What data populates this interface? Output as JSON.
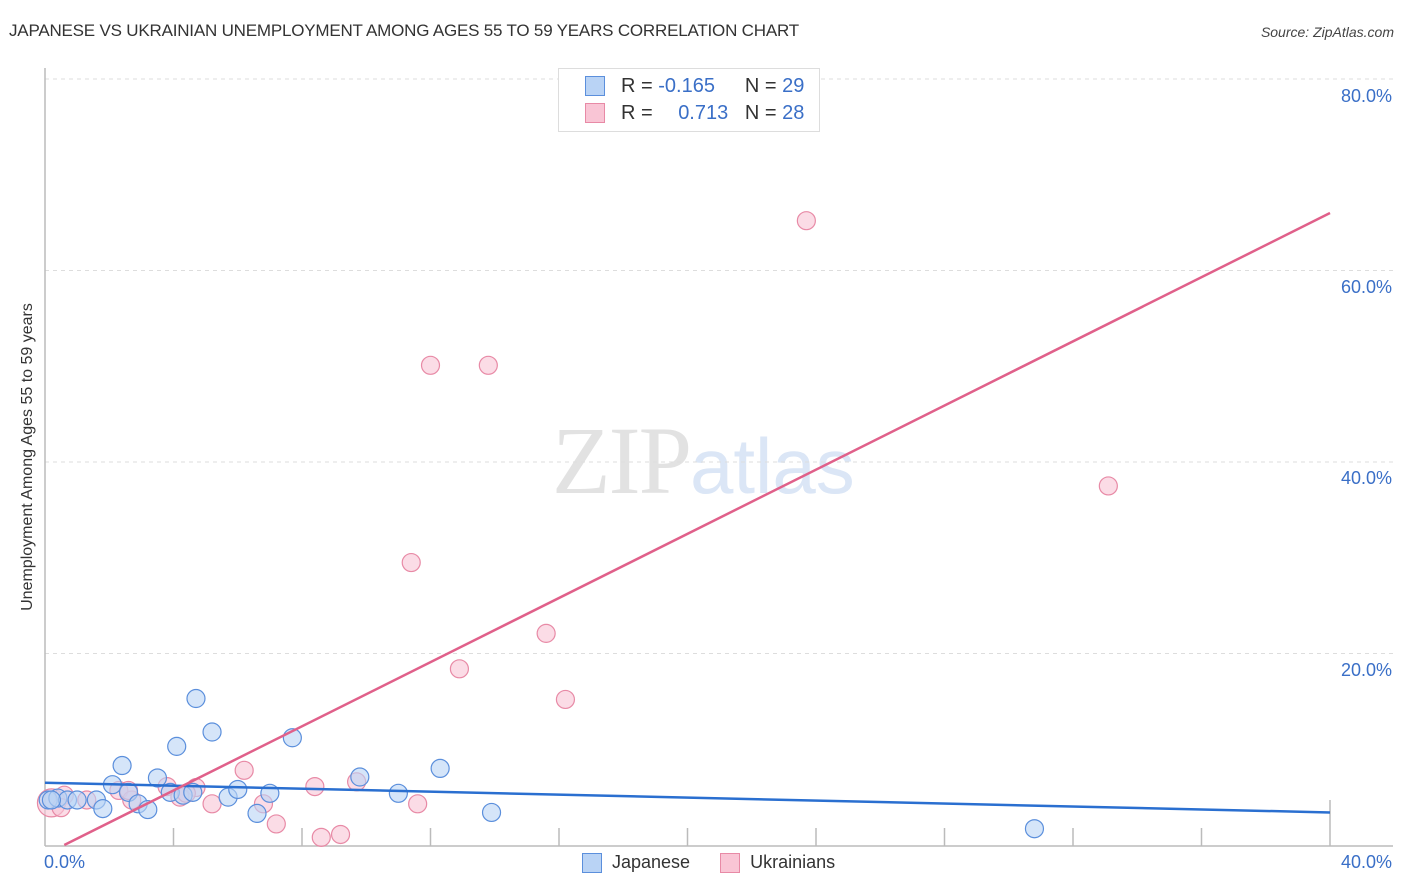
{
  "header": {
    "title": "JAPANESE VS UKRAINIAN UNEMPLOYMENT AMONG AGES 55 TO 59 YEARS CORRELATION CHART",
    "source": "Source: ZipAtlas.com"
  },
  "watermark": {
    "zip": "ZIP",
    "atlas": "atlas"
  },
  "legend_top": {
    "rows": [
      {
        "r_label": "R =",
        "r_value": "-0.165",
        "n_label": "N =",
        "n_value": "29"
      },
      {
        "r_label": "R =",
        "r_value": "0.713",
        "n_label": "N =",
        "n_value": "28"
      }
    ]
  },
  "legend_bottom": {
    "items": [
      "Japanese",
      "Ukrainians"
    ]
  },
  "axes": {
    "y_label": "Unemployment Among Ages 55 to 59 years",
    "y_ticks": [
      "80.0%",
      "60.0%",
      "40.0%",
      "20.0%"
    ],
    "x_tick_left": "0.0%",
    "x_tick_right": "40.0%"
  },
  "colors": {
    "japanese_fill": "#b9d3f5",
    "japanese_stroke": "#5b8fdc",
    "japanese_line": "#2a6fd0",
    "ukrainians_fill": "#f9c5d5",
    "ukrainians_stroke": "#e88aa6",
    "ukrainians_line": "#e0608a",
    "tick_text": "#3a6fc7"
  },
  "chart_data": {
    "type": "scatter",
    "title": "JAPANESE VS UKRAINIAN UNEMPLOYMENT AMONG AGES 55 TO 59 YEARS CORRELATION CHART",
    "xlabel": "",
    "ylabel": "Unemployment Among Ages 55 to 59 years",
    "xlim": [
      0,
      40
    ],
    "ylim": [
      0,
      80
    ],
    "x_ticks": [
      "0.0%",
      "40.0%"
    ],
    "y_ticks": [
      "20.0%",
      "40.0%",
      "60.0%",
      "80.0%"
    ],
    "grid": "horizontal dashed",
    "legend_position": "top-center and bottom-center",
    "series": [
      {
        "name": "Japanese",
        "R": -0.165,
        "N": 29,
        "points": [
          [
            0.1,
            4.7
          ],
          [
            0.4,
            4.9
          ],
          [
            0.7,
            4.7
          ],
          [
            1.0,
            4.7
          ],
          [
            1.6,
            4.7
          ],
          [
            1.8,
            3.8
          ],
          [
            2.1,
            6.3
          ],
          [
            2.4,
            8.3
          ],
          [
            2.6,
            5.5
          ],
          [
            2.9,
            4.3
          ],
          [
            3.2,
            3.7
          ],
          [
            3.5,
            7.0
          ],
          [
            3.9,
            5.5
          ],
          [
            4.1,
            10.3
          ],
          [
            4.3,
            5.2
          ],
          [
            4.6,
            5.5
          ],
          [
            4.7,
            15.3
          ],
          [
            5.2,
            11.8
          ],
          [
            5.7,
            5.0
          ],
          [
            6.0,
            5.8
          ],
          [
            6.6,
            3.3
          ],
          [
            7.0,
            5.4
          ],
          [
            7.7,
            11.2
          ],
          [
            9.8,
            7.1
          ],
          [
            11.0,
            5.4
          ],
          [
            12.3,
            8.0
          ],
          [
            13.9,
            3.4
          ],
          [
            30.8,
            1.7
          ],
          [
            0.2,
            4.7
          ]
        ],
        "trendline": {
          "x": [
            0,
            40
          ],
          "y": [
            6.5,
            3.4
          ]
        }
      },
      {
        "name": "Ukrainians",
        "R": 0.713,
        "N": 28,
        "points": [
          [
            0.2,
            4.4
          ],
          [
            0.6,
            5.2
          ],
          [
            1.3,
            4.7
          ],
          [
            2.3,
            5.7
          ],
          [
            2.7,
            4.7
          ],
          [
            3.8,
            6.1
          ],
          [
            4.2,
            5.0
          ],
          [
            4.7,
            6.0
          ],
          [
            5.2,
            4.3
          ],
          [
            6.2,
            7.8
          ],
          [
            6.8,
            4.3
          ],
          [
            7.2,
            2.2
          ],
          [
            8.4,
            6.1
          ],
          [
            8.6,
            0.8
          ],
          [
            9.2,
            1.1
          ],
          [
            9.7,
            6.6
          ],
          [
            11.4,
            29.5
          ],
          [
            11.6,
            4.3
          ],
          [
            12.0,
            50.1
          ],
          [
            12.9,
            18.4
          ],
          [
            13.8,
            50.1
          ],
          [
            15.6,
            22.1
          ],
          [
            16.2,
            15.2
          ],
          [
            23.7,
            65.2
          ],
          [
            33.1,
            37.5
          ],
          [
            2.6,
            5.7
          ],
          [
            4.4,
            5.4
          ],
          [
            0.5,
            3.9
          ]
        ],
        "trendline": {
          "x": [
            0.6,
            40
          ],
          "y": [
            0,
            66.0
          ]
        }
      }
    ]
  }
}
